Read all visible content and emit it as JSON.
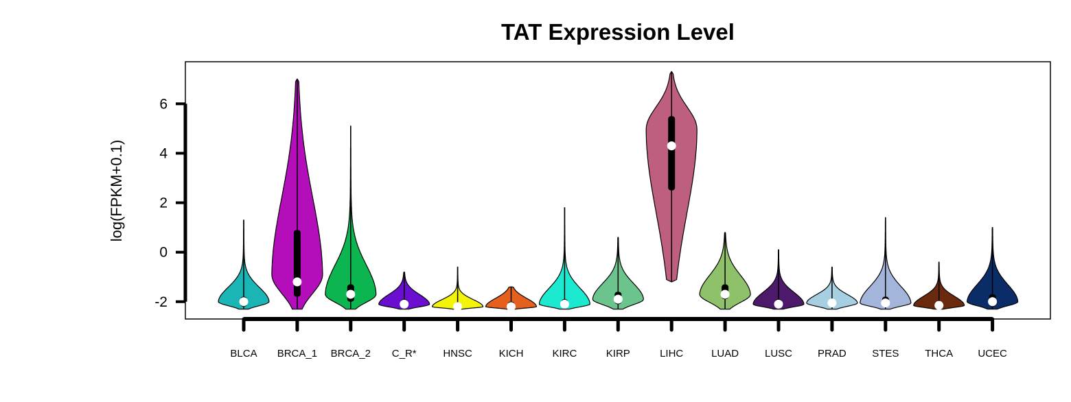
{
  "chart_data": {
    "type": "violin",
    "title": "TAT Expression Level",
    "xlabel": "",
    "ylabel": "log(FPKM+0.1)",
    "ylim": [
      -2.7,
      7.7
    ],
    "yticks": [
      -2,
      0,
      2,
      4,
      6
    ],
    "ytick_labels": [
      "-2",
      "0",
      "2",
      "4",
      "6"
    ],
    "grid": false,
    "legend": "none",
    "series": [
      {
        "category": "BLCA",
        "color": "#1BB5B5",
        "min": -2.3,
        "q1": -2.2,
        "median": -2.0,
        "q3": -1.8,
        "max": 1.3,
        "peak": -2.0
      },
      {
        "category": "BRCA_1",
        "color": "#B40EBB",
        "min": -2.3,
        "q1": -1.8,
        "median": -1.2,
        "q3": 0.9,
        "max": 7.0,
        "peak": -0.9
      },
      {
        "category": "BRCA_2",
        "color": "#0DB550",
        "min": -2.3,
        "q1": -2.0,
        "median": -1.7,
        "q3": -1.3,
        "max": 5.1,
        "peak": -1.7
      },
      {
        "category": "C_R*",
        "color": "#6A0ECF",
        "min": -2.3,
        "q1": -2.2,
        "median": -2.1,
        "q3": -1.9,
        "max": -0.8,
        "peak": -2.1
      },
      {
        "category": "HNSC",
        "color": "#F4F40A",
        "min": -2.3,
        "q1": -2.3,
        "median": -2.2,
        "q3": -2.1,
        "max": -0.6,
        "peak": -2.2
      },
      {
        "category": "KICH",
        "color": "#E5601D",
        "min": -2.3,
        "q1": -2.3,
        "median": -2.2,
        "q3": -2.0,
        "max": -1.4,
        "peak": -2.2
      },
      {
        "category": "KIRC",
        "color": "#1CEAD0",
        "min": -2.3,
        "q1": -2.2,
        "median": -2.1,
        "q3": -1.9,
        "max": 1.8,
        "peak": -2.1
      },
      {
        "category": "KIRP",
        "color": "#6BC48C",
        "min": -2.3,
        "q1": -2.1,
        "median": -1.9,
        "q3": -1.6,
        "max": 0.6,
        "peak": -1.9
      },
      {
        "category": "LIHC",
        "color": "#BF5F7F",
        "min": -1.2,
        "q1": 2.5,
        "median": 4.3,
        "q3": 5.5,
        "max": 7.3,
        "peak": 5.0
      },
      {
        "category": "LUAD",
        "color": "#8FC16A",
        "min": -2.3,
        "q1": -1.9,
        "median": -1.7,
        "q3": -1.3,
        "max": 0.8,
        "peak": -1.7
      },
      {
        "category": "LUSC",
        "color": "#4D1A6B",
        "min": -2.3,
        "q1": -2.2,
        "median": -2.1,
        "q3": -1.9,
        "max": 0.1,
        "peak": -2.1
      },
      {
        "category": "PRAD",
        "color": "#A7CFE2",
        "min": -2.3,
        "q1": -2.2,
        "median": -2.05,
        "q3": -1.9,
        "max": -0.6,
        "peak": -2.05
      },
      {
        "category": "STES",
        "color": "#A4B5DB",
        "min": -2.3,
        "q1": -2.2,
        "median": -2.05,
        "q3": -1.8,
        "max": 1.4,
        "peak": -2.05
      },
      {
        "category": "THCA",
        "color": "#6B2A0E",
        "min": -2.3,
        "q1": -2.2,
        "median": -2.15,
        "q3": -2.0,
        "max": -0.4,
        "peak": -2.15
      },
      {
        "category": "UCEC",
        "color": "#0A2D67",
        "min": -2.3,
        "q1": -2.2,
        "median": -2.0,
        "q3": -1.7,
        "max": 1.0,
        "peak": -2.0
      }
    ]
  }
}
